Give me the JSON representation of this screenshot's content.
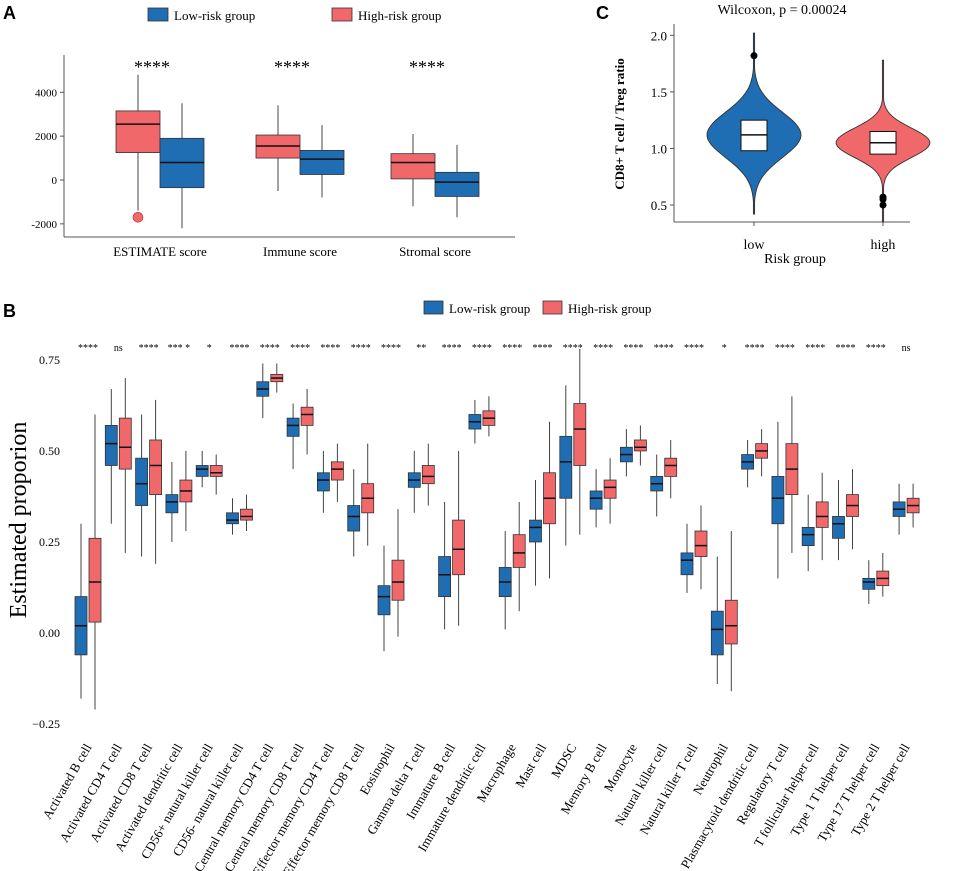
{
  "colors": {
    "low": "#1f6db3",
    "high": "#f0686a",
    "axis": "#555555"
  },
  "panels": {
    "a": "A",
    "b": "B",
    "c": "C"
  },
  "chart_data": [
    {
      "type": "box",
      "panel": "A",
      "categories": [
        "ESTIMATE score",
        "Immune score",
        "Stromal score"
      ],
      "legend": [
        "Low-risk group",
        "High-risk group"
      ],
      "significance": [
        "****",
        "****",
        "****"
      ],
      "yticks": [
        -2000,
        0,
        2000,
        4000
      ],
      "ylim": [
        -2600,
        5700
      ],
      "series": [
        {
          "name": "High-risk group",
          "boxes": [
            {
              "min": -1400,
              "q1": 1250,
              "median": 2550,
              "q3": 3150,
              "max": 4800,
              "outliers": [
                -1700
              ]
            },
            {
              "min": -500,
              "q1": 1000,
              "median": 1550,
              "q3": 2050,
              "max": 3400,
              "outliers": []
            },
            {
              "min": -1200,
              "q1": 50,
              "median": 800,
              "q3": 1200,
              "max": 2100,
              "outliers": []
            }
          ]
        },
        {
          "name": "Low-risk group",
          "boxes": [
            {
              "min": -2200,
              "q1": -350,
              "median": 800,
              "q3": 1900,
              "max": 3500,
              "outliers": []
            },
            {
              "min": -800,
              "q1": 250,
              "median": 950,
              "q3": 1350,
              "max": 2500,
              "outliers": []
            },
            {
              "min": -1700,
              "q1": -750,
              "median": -100,
              "q3": 350,
              "max": 1600,
              "outliers": []
            }
          ]
        }
      ]
    },
    {
      "type": "box",
      "panel": "B",
      "ylabel": "Estimated proporion",
      "legend": [
        "Low-risk group",
        "High-risk group"
      ],
      "yticks": [
        -0.25,
        0.0,
        0.25,
        0.5,
        0.75
      ],
      "ytick_labels": [
        "−0.25",
        "0.00",
        "0.25",
        "0.50",
        "0.75"
      ],
      "ylim": [
        -0.28,
        0.81
      ],
      "categories": [
        "Activated B cell",
        "Activated CD4 T cell",
        "Activated CD8 T cell",
        "Activated dendritic cell",
        "CD56+ natural killer cell",
        "CD56- natural killer cell",
        "Central memory CD4 T cell",
        "Central memory CD8 T cell",
        "Effector memory CD4 T cell",
        "Effector memory CD8 T cell",
        "Eosinophil",
        "Gamma delta T cell",
        "Immature  B cell",
        "Immature dendritic cell",
        "Macrophage",
        "Mast cell",
        "MDSC",
        "Memory B cell",
        "Monocyte",
        "Natural killer cell",
        "Natural killer T cell",
        "Neutrophil",
        "Plasmacytoid dendritic cell",
        "Regulatory T cell",
        "T follicular helper cell",
        "Type 1 T helper cell",
        "Type 17 T helper cell",
        "Type 2 T helper cell"
      ],
      "significance": [
        "****",
        "ns",
        "****",
        "*** *",
        "*",
        "****",
        "****",
        "****",
        "****",
        "****",
        "****",
        "**",
        "****",
        "****",
        "****",
        "****",
        "****",
        "****",
        "****",
        "****",
        "****",
        "*",
        "****",
        "****",
        "****",
        "****",
        "****",
        "ns"
      ],
      "series": [
        {
          "name": "Low-risk group",
          "boxes": [
            {
              "min": -0.18,
              "q1": -0.06,
              "median": 0.02,
              "q3": 0.1,
              "max": 0.3
            },
            {
              "min": 0.3,
              "q1": 0.46,
              "median": 0.52,
              "q3": 0.57,
              "max": 0.67
            },
            {
              "min": 0.21,
              "q1": 0.35,
              "median": 0.41,
              "q3": 0.48,
              "max": 0.6
            },
            {
              "min": 0.25,
              "q1": 0.33,
              "median": 0.36,
              "q3": 0.38,
              "max": 0.47
            },
            {
              "min": 0.4,
              "q1": 0.43,
              "median": 0.45,
              "q3": 0.46,
              "max": 0.5
            },
            {
              "min": 0.27,
              "q1": 0.3,
              "median": 0.31,
              "q3": 0.33,
              "max": 0.37
            },
            {
              "min": 0.59,
              "q1": 0.65,
              "median": 0.67,
              "q3": 0.69,
              "max": 0.74
            },
            {
              "min": 0.45,
              "q1": 0.54,
              "median": 0.57,
              "q3": 0.59,
              "max": 0.63
            },
            {
              "min": 0.33,
              "q1": 0.39,
              "median": 0.42,
              "q3": 0.44,
              "max": 0.5
            },
            {
              "min": 0.21,
              "q1": 0.28,
              "median": 0.32,
              "q3": 0.35,
              "max": 0.45
            },
            {
              "min": -0.05,
              "q1": 0.05,
              "median": 0.1,
              "q3": 0.13,
              "max": 0.24
            },
            {
              "min": 0.33,
              "q1": 0.4,
              "median": 0.42,
              "q3": 0.44,
              "max": 0.5
            },
            {
              "min": 0.01,
              "q1": 0.1,
              "median": 0.16,
              "q3": 0.21,
              "max": 0.36
            },
            {
              "min": 0.52,
              "q1": 0.56,
              "median": 0.58,
              "q3": 0.6,
              "max": 0.64
            },
            {
              "min": 0.01,
              "q1": 0.1,
              "median": 0.14,
              "q3": 0.18,
              "max": 0.28
            },
            {
              "min": 0.13,
              "q1": 0.25,
              "median": 0.29,
              "q3": 0.31,
              "max": 0.42
            },
            {
              "min": 0.24,
              "q1": 0.37,
              "median": 0.47,
              "q3": 0.54,
              "max": 0.68
            },
            {
              "min": 0.29,
              "q1": 0.34,
              "median": 0.37,
              "q3": 0.39,
              "max": 0.45
            },
            {
              "min": 0.43,
              "q1": 0.47,
              "median": 0.49,
              "q3": 0.51,
              "max": 0.56
            },
            {
              "min": 0.32,
              "q1": 0.39,
              "median": 0.41,
              "q3": 0.43,
              "max": 0.49
            },
            {
              "min": 0.11,
              "q1": 0.16,
              "median": 0.2,
              "q3": 0.22,
              "max": 0.3
            },
            {
              "min": -0.14,
              "q1": -0.06,
              "median": 0.01,
              "q3": 0.06,
              "max": 0.21
            },
            {
              "min": 0.4,
              "q1": 0.45,
              "median": 0.47,
              "q3": 0.49,
              "max": 0.53
            },
            {
              "min": 0.15,
              "q1": 0.3,
              "median": 0.37,
              "q3": 0.43,
              "max": 0.58
            },
            {
              "min": 0.17,
              "q1": 0.24,
              "median": 0.27,
              "q3": 0.29,
              "max": 0.38
            },
            {
              "min": 0.2,
              "q1": 0.26,
              "median": 0.3,
              "q3": 0.32,
              "max": 0.42
            },
            {
              "min": 0.08,
              "q1": 0.12,
              "median": 0.14,
              "q3": 0.15,
              "max": 0.2
            },
            {
              "min": 0.27,
              "q1": 0.32,
              "median": 0.34,
              "q3": 0.36,
              "max": 0.41
            }
          ]
        },
        {
          "name": "High-risk group",
          "boxes": [
            {
              "min": -0.21,
              "q1": 0.03,
              "median": 0.14,
              "q3": 0.26,
              "max": 0.6
            },
            {
              "min": 0.22,
              "q1": 0.45,
              "median": 0.51,
              "q3": 0.59,
              "max": 0.7
            },
            {
              "min": 0.19,
              "q1": 0.38,
              "median": 0.46,
              "q3": 0.53,
              "max": 0.64
            },
            {
              "min": 0.28,
              "q1": 0.36,
              "median": 0.39,
              "q3": 0.42,
              "max": 0.5
            },
            {
              "min": 0.38,
              "q1": 0.43,
              "median": 0.44,
              "q3": 0.46,
              "max": 0.49
            },
            {
              "min": 0.28,
              "q1": 0.31,
              "median": 0.32,
              "q3": 0.34,
              "max": 0.38
            },
            {
              "min": 0.66,
              "q1": 0.69,
              "median": 0.7,
              "q3": 0.71,
              "max": 0.74
            },
            {
              "min": 0.49,
              "q1": 0.57,
              "median": 0.6,
              "q3": 0.62,
              "max": 0.67
            },
            {
              "min": 0.36,
              "q1": 0.42,
              "median": 0.45,
              "q3": 0.47,
              "max": 0.52
            },
            {
              "min": 0.24,
              "q1": 0.33,
              "median": 0.37,
              "q3": 0.41,
              "max": 0.52
            },
            {
              "min": -0.01,
              "q1": 0.09,
              "median": 0.14,
              "q3": 0.2,
              "max": 0.34
            },
            {
              "min": 0.35,
              "q1": 0.41,
              "median": 0.43,
              "q3": 0.46,
              "max": 0.52
            },
            {
              "min": 0.02,
              "q1": 0.16,
              "median": 0.23,
              "q3": 0.31,
              "max": 0.5
            },
            {
              "min": 0.54,
              "q1": 0.57,
              "median": 0.59,
              "q3": 0.61,
              "max": 0.65
            },
            {
              "min": 0.06,
              "q1": 0.18,
              "median": 0.22,
              "q3": 0.27,
              "max": 0.36
            },
            {
              "min": 0.15,
              "q1": 0.3,
              "median": 0.37,
              "q3": 0.44,
              "max": 0.58
            },
            {
              "min": 0.27,
              "q1": 0.46,
              "median": 0.56,
              "q3": 0.63,
              "max": 0.78
            },
            {
              "min": 0.3,
              "q1": 0.37,
              "median": 0.4,
              "q3": 0.42,
              "max": 0.48
            },
            {
              "min": 0.46,
              "q1": 0.5,
              "median": 0.51,
              "q3": 0.53,
              "max": 0.57
            },
            {
              "min": 0.37,
              "q1": 0.43,
              "median": 0.46,
              "q3": 0.48,
              "max": 0.53
            },
            {
              "min": 0.12,
              "q1": 0.21,
              "median": 0.24,
              "q3": 0.28,
              "max": 0.35
            },
            {
              "min": -0.16,
              "q1": -0.03,
              "median": 0.02,
              "q3": 0.09,
              "max": 0.28
            },
            {
              "min": 0.43,
              "q1": 0.48,
              "median": 0.5,
              "q3": 0.52,
              "max": 0.56
            },
            {
              "min": 0.22,
              "q1": 0.38,
              "median": 0.45,
              "q3": 0.52,
              "max": 0.65
            },
            {
              "min": 0.2,
              "q1": 0.29,
              "median": 0.32,
              "q3": 0.36,
              "max": 0.44
            },
            {
              "min": 0.23,
              "q1": 0.32,
              "median": 0.35,
              "q3": 0.38,
              "max": 0.45
            },
            {
              "min": 0.1,
              "q1": 0.13,
              "median": 0.15,
              "q3": 0.17,
              "max": 0.22
            },
            {
              "min": 0.29,
              "q1": 0.33,
              "median": 0.35,
              "q3": 0.37,
              "max": 0.41
            }
          ]
        }
      ]
    },
    {
      "type": "violin",
      "panel": "C",
      "title": "Wilcoxon, p = 0.00024",
      "xlabel": "Risk group",
      "ylabel": "CD8+ T cell / Treg ratio",
      "categories": [
        "low",
        "high"
      ],
      "yticks": [
        0.5,
        1.0,
        1.5,
        2.0
      ],
      "ytick_labels": [
        "0.5",
        "1.0",
        "1.5",
        "2.0"
      ],
      "ylim": [
        0.35,
        2.1
      ],
      "series": [
        {
          "name": "low",
          "min": 0.42,
          "max": 2.02,
          "q1": 0.98,
          "median": 1.12,
          "q3": 1.25,
          "mode": 1.12,
          "spread": 0.2,
          "outliers": [
            1.82
          ]
        },
        {
          "name": "high",
          "min": 0.35,
          "max": 1.78,
          "q1": 0.95,
          "median": 1.05,
          "q3": 1.15,
          "mode": 1.05,
          "spread": 0.13,
          "outliers": [
            0.5,
            0.55,
            0.57
          ]
        }
      ]
    }
  ]
}
